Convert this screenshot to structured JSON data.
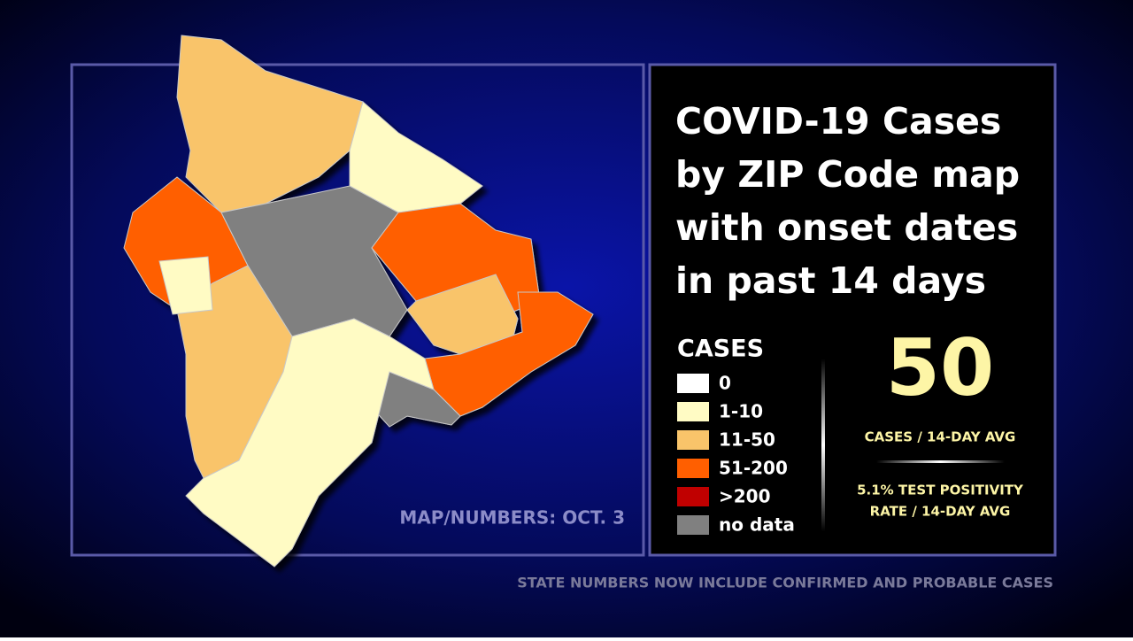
{
  "title_lines": [
    "COVID-19 Cases",
    "by ZIP Code map",
    "with onset dates",
    "in past 14 days"
  ],
  "legend": {
    "title": "CASES",
    "items": [
      {
        "label": "0",
        "color": "#ffffff"
      },
      {
        "label": "1-10",
        "color": "#fffbc4"
      },
      {
        "label": "11-50",
        "color": "#f9c46a"
      },
      {
        "label": "51-200",
        "color": "#ff5f00"
      },
      {
        "label": ">200",
        "color": "#c00000"
      },
      {
        "label": "no data",
        "color": "#808080"
      }
    ]
  },
  "cases_avg": {
    "value": "50",
    "label": "CASES / 14-DAY AVG"
  },
  "positivity_lines": [
    "5.1% TEST POSITIVITY",
    "RATE / 14-DAY AVG"
  ],
  "map_date": "MAP/NUMBERS: OCT. 3",
  "footer": "STATE NUMBERS NOW INCLUDE CONFIRMED AND PROBABLE CASES"
}
